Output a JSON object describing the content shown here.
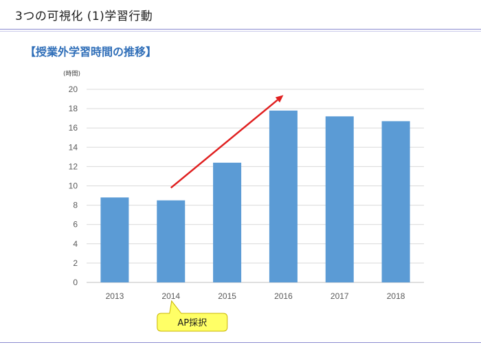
{
  "slide": {
    "title": "3つの可視化 (1)学習行動"
  },
  "chart_data": {
    "type": "bar",
    "title": "【授業外学習時間の推移】",
    "ylabel": "(時間)",
    "categories": [
      "2013",
      "2014",
      "2015",
      "2016",
      "2017",
      "2018"
    ],
    "values": [
      8.8,
      8.5,
      12.4,
      17.8,
      17.2,
      16.7
    ],
    "ylim": [
      0,
      20
    ],
    "yticks": [
      0,
      2,
      4,
      6,
      8,
      10,
      12,
      14,
      16,
      18,
      20
    ],
    "grid": true,
    "bar_color": "#5b9bd5",
    "trend_arrow": {
      "from_category": "2014",
      "to_category": "2016",
      "from_value": 9.8,
      "to_value": 19.4,
      "color": "#e02020"
    },
    "annotation": {
      "text": "AP採択",
      "category": "2014",
      "fill": "#ffff66",
      "stroke": "#c8b400"
    }
  }
}
